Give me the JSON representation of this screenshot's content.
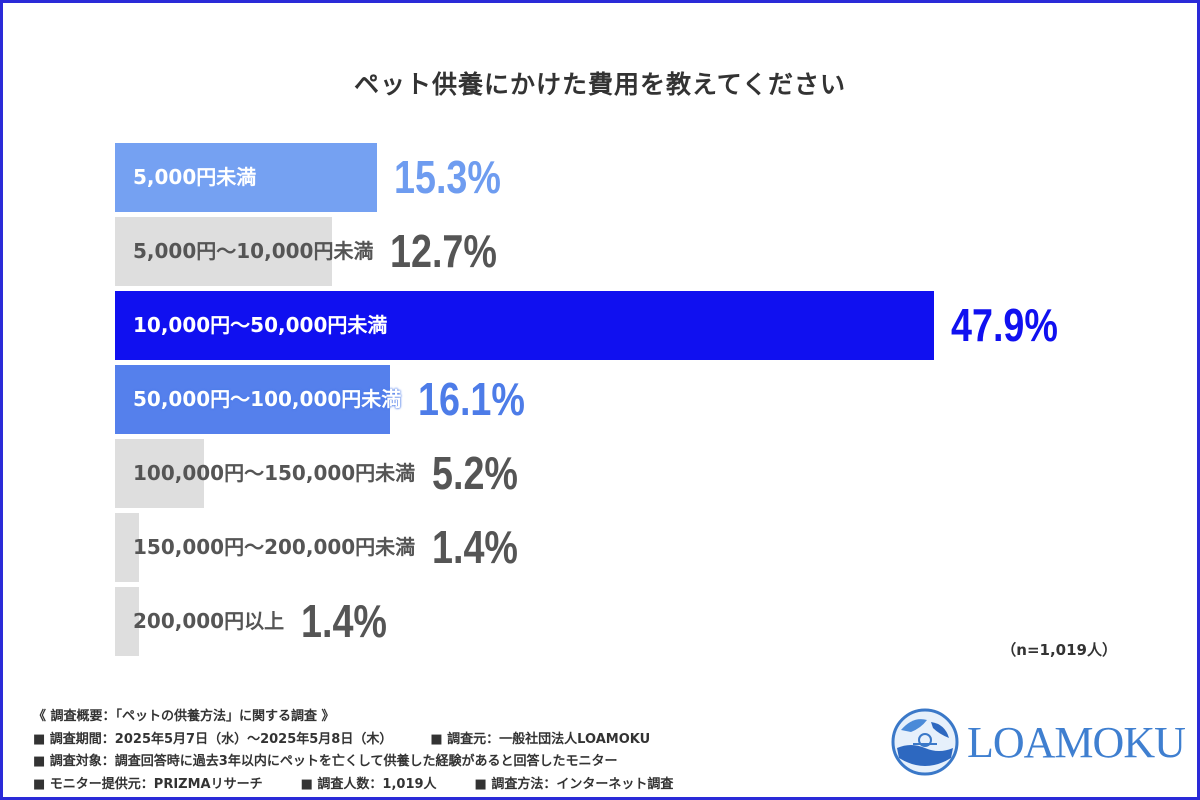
{
  "chart_data": {
    "type": "bar",
    "orientation": "horizontal",
    "title": "ペット供養にかけた費用を教えてください",
    "categories": [
      "5,000円未満",
      "5,000円～10,000円未満",
      "10,000円～50,000円未満",
      "50,000円～100,000円未満",
      "100,000円～150,000円未満",
      "150,000円～200,000円未満",
      "200,000円以上"
    ],
    "values": [
      15.3,
      12.7,
      47.9,
      16.1,
      5.2,
      1.4,
      1.4
    ],
    "value_labels": [
      "15.3%",
      "12.7%",
      "47.9%",
      "16.1%",
      "5.2%",
      "1.4%",
      "1.4%"
    ],
    "unit": "%",
    "grid": false,
    "bar_colors": [
      "#75a1f2",
      "#dedede",
      "#1010f0",
      "#5580ec",
      "#dedede",
      "#dedede",
      "#dedede"
    ],
    "label_colors": [
      "#ffffff",
      "#555555",
      "#ffffff",
      "#ffffff",
      "#555555",
      "#555555",
      "#555555"
    ],
    "value_colors": [
      "#6e9cf0",
      "#555555",
      "#1010f0",
      "#4d7ce8",
      "#555555",
      "#555555",
      "#555555"
    ],
    "note": "（n=1,019人）"
  },
  "footer": {
    "lines": [
      [
        "《 調査概要：「ペットの供養方法」に関する調査 》"
      ],
      [
        "■ 調査期間：2025年5月7日（水）～2025年5月8日（木）",
        "■ 調査元：一般社団法人LOAMOKU"
      ],
      [
        "■ 調査対象：調査回答時に過去3年以内にペットを亡くして供養した経験があると回答したモニター"
      ],
      [
        "■ モニター提供元：PRIZMAリサーチ",
        "■ 調査人数：1,019人",
        "■ 調査方法：インターネット調査"
      ]
    ]
  },
  "logo": {
    "text": "LOAMOKU"
  },
  "colors": {
    "frame": "#2a2ad8"
  }
}
